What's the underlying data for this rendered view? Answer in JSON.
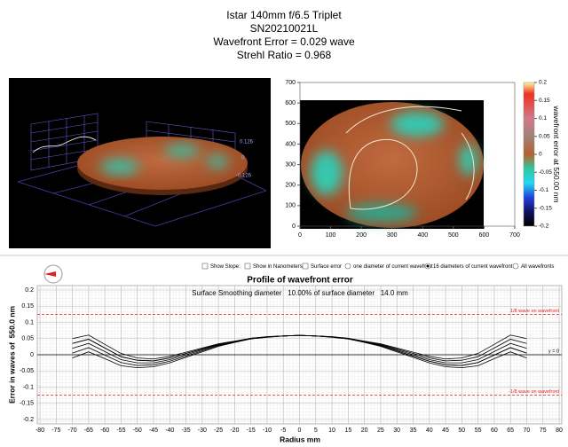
{
  "header": {
    "lines": [
      "Istar 140mm f/6.5 Triplet",
      "SN20210021L",
      "Wavefront Error = 0.029 wave",
      "Strehl Ratio = 0.968"
    ]
  },
  "surface_view": {
    "scale_labels": [
      "0.126",
      "0",
      "-0.126"
    ]
  },
  "controls": {
    "checkboxes": [
      {
        "label": "Show Slope:",
        "checked": false
      },
      {
        "label": "Show in Nanometers",
        "checked": false
      },
      {
        "label": "Surface error",
        "checked": false
      }
    ],
    "radios": [
      {
        "label": "one diameter of current wavefront",
        "selected": false
      },
      {
        "label": "16 diameters of current wavefront",
        "selected": true
      },
      {
        "label": "All wavefronts",
        "selected": false
      }
    ]
  },
  "chart_data": [
    {
      "type": "heatmap",
      "xlim": [
        0,
        700
      ],
      "xticks": [
        0,
        100,
        200,
        300,
        400,
        500,
        600,
        700
      ],
      "ylim": [
        0,
        700
      ],
      "yticks": [
        0,
        100,
        200,
        300,
        400,
        500,
        600,
        700
      ],
      "colorbar": {
        "label": "wavefront error at 550.00 nm",
        "lim": [
          -0.2,
          0.2
        ],
        "ticks": [
          0.2,
          0.15,
          0.1,
          0.05,
          0,
          -0.05,
          -0.1,
          -0.15,
          -0.2
        ]
      }
    },
    {
      "type": "line",
      "title": "Profile of wavefront error",
      "annotation": "Surface Smoothing diameter   10.00% of surface diameter   14.0 mm",
      "x_label": "Radius mm",
      "y_label": "Error in waves of  550.0 nm",
      "x": [
        -70,
        -65,
        -60,
        -55,
        -50,
        -45,
        -40,
        -35,
        -30,
        -25,
        -20,
        -15,
        -10,
        -5,
        0,
        5,
        10,
        15,
        20,
        25,
        30,
        35,
        40,
        45,
        50,
        55,
        60,
        65,
        70
      ],
      "series": [
        {
          "color": "#000000",
          "values": [
            0.05,
            0.061,
            0.032,
            0.004,
            -0.01,
            -0.013,
            -0.005,
            0.008,
            0.021,
            0.034,
            0.042,
            0.051,
            0.056,
            0.058,
            0.06,
            0.058,
            0.055,
            0.049,
            0.039,
            0.028,
            0.012,
            -0.004,
            -0.02,
            -0.031,
            -0.033,
            -0.024,
            -0.001,
            0.022,
            0.005
          ]
        },
        {
          "color": "#000000",
          "values": [
            0.035,
            0.048,
            0.021,
            -0.006,
            -0.017,
            -0.019,
            -0.01,
            0.004,
            0.018,
            0.032,
            0.041,
            0.051,
            0.055,
            0.058,
            0.06,
            0.058,
            0.056,
            0.051,
            0.042,
            0.034,
            0.021,
            0.008,
            -0.005,
            -0.013,
            -0.01,
            0.004,
            0.032,
            0.061,
            0.05
          ]
        },
        {
          "color": "#000000",
          "values": [
            0.02,
            0.035,
            0.01,
            -0.015,
            -0.025,
            -0.025,
            -0.015,
            0,
            0.015,
            0.03,
            0.04,
            0.05,
            0.055,
            0.058,
            0.06,
            0.058,
            0.055,
            0.05,
            0.04,
            0.03,
            0.015,
            0,
            -0.015,
            -0.025,
            -0.025,
            -0.015,
            0.01,
            0.035,
            0.02
          ]
        },
        {
          "color": "#000000",
          "values": [
            0.005,
            0.022,
            -0.001,
            -0.024,
            -0.033,
            -0.031,
            -0.02,
            -0.004,
            0.012,
            0.028,
            0.039,
            0.049,
            0.055,
            0.058,
            0.06,
            0.058,
            0.055,
            0.051,
            0.041,
            0.032,
            0.018,
            0.004,
            -0.01,
            -0.019,
            -0.017,
            -0.006,
            0.021,
            0.048,
            0.035
          ]
        },
        {
          "color": "#000000",
          "values": [
            -0.01,
            0.009,
            -0.012,
            -0.034,
            -0.04,
            -0.037,
            -0.025,
            -0.008,
            0.009,
            0.026,
            0.038,
            0.049,
            0.054,
            0.058,
            0.06,
            0.058,
            0.054,
            0.049,
            0.038,
            0.026,
            0.009,
            -0.008,
            -0.025,
            -0.037,
            -0.04,
            -0.034,
            -0.012,
            0.009,
            -0.01
          ]
        },
        {
          "color": "#000000",
          "values": [
            0.035,
            0.048,
            0.021,
            -0.006,
            -0.017,
            -0.019,
            -0.01,
            0.004,
            0.018,
            0.032,
            0.041,
            0.051,
            0.055,
            0.058,
            0.06,
            0.058,
            0.055,
            0.049,
            0.039,
            0.028,
            0.012,
            -0.004,
            -0.02,
            -0.031,
            -0.033,
            -0.024,
            -0.001,
            0.022,
            0.005
          ]
        }
      ],
      "xlim": [
        -80,
        80
      ],
      "xticks": [
        -80,
        -75,
        -70,
        -65,
        -60,
        -55,
        -50,
        -45,
        -40,
        -35,
        -30,
        -25,
        -20,
        -15,
        -10,
        -5,
        0,
        5,
        10,
        15,
        20,
        25,
        30,
        35,
        40,
        45,
        50,
        55,
        60,
        65,
        70,
        75,
        80
      ],
      "ylim": [
        -0.2,
        0.2
      ],
      "yticks": [
        -0.2,
        -0.15,
        -0.1,
        -0.05,
        0,
        0.05,
        0.1,
        0.15,
        0.2
      ],
      "grid": true,
      "reference_lines": [
        {
          "value": 0.125,
          "label": "1/8 wave on wavefront",
          "color": "#e02020"
        },
        {
          "value": -0.125,
          "label": "-1/8 wave on wavefront",
          "color": "#e02020"
        },
        {
          "value": 0,
          "label": "y = 0",
          "color": "#000000"
        }
      ]
    }
  ]
}
